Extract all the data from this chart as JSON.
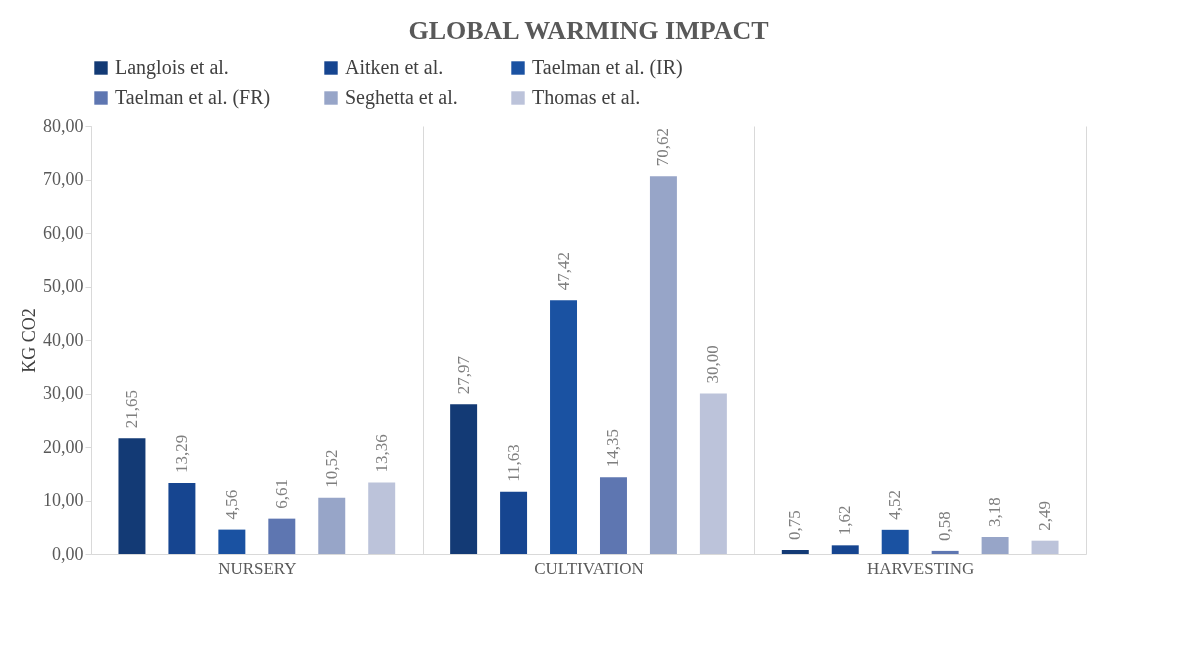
{
  "chart_data": {
    "type": "bar",
    "title": "GLOBAL WARMING IMPACT",
    "ylabel": "KG CO2",
    "categories": [
      "NURSERY",
      "CULTIVATION",
      "HARVESTING"
    ],
    "series": [
      {
        "name": "Langlois et al.",
        "color": "#133a75",
        "values": [
          21.65,
          27.97,
          0.75
        ],
        "value_labels": [
          "21,65",
          "27,97",
          "0,75"
        ]
      },
      {
        "name": "Aitken et al.",
        "color": "#164590",
        "values": [
          13.29,
          11.63,
          1.62
        ],
        "value_labels": [
          "13,29",
          "11,63",
          "1,62"
        ]
      },
      {
        "name": "Taelman et al. (IR)",
        "color": "#1a52a2",
        "values": [
          4.56,
          47.42,
          4.52
        ],
        "value_labels": [
          "4,56",
          "47,42",
          "4,52"
        ]
      },
      {
        "name": "Taelman et al. (FR)",
        "color": "#5e76b1",
        "values": [
          6.61,
          14.35,
          0.58
        ],
        "value_labels": [
          "6,61",
          "14,35",
          "0,58"
        ]
      },
      {
        "name": "Seghetta et al.",
        "color": "#97a5c8",
        "values": [
          10.52,
          70.62,
          3.18
        ],
        "value_labels": [
          "10,52",
          "70,62",
          "3,18"
        ]
      },
      {
        "name": "Thomas et al.",
        "color": "#bcc3da",
        "values": [
          13.36,
          30.0,
          2.49
        ],
        "value_labels": [
          "13,36",
          "30,00",
          "2,49"
        ]
      }
    ],
    "ylim": [
      0,
      80
    ],
    "yticks": [
      {
        "value": 0,
        "label": "0,00"
      },
      {
        "value": 10,
        "label": "10,00"
      },
      {
        "value": 20,
        "label": "20,00"
      },
      {
        "value": 30,
        "label": "30,00"
      },
      {
        "value": 40,
        "label": "40,00"
      },
      {
        "value": 50,
        "label": "50,00"
      },
      {
        "value": 60,
        "label": "60,00"
      },
      {
        "value": 70,
        "label": "70,00"
      },
      {
        "value": 80,
        "label": "80,00"
      }
    ],
    "grid": "x",
    "legend": "top"
  }
}
